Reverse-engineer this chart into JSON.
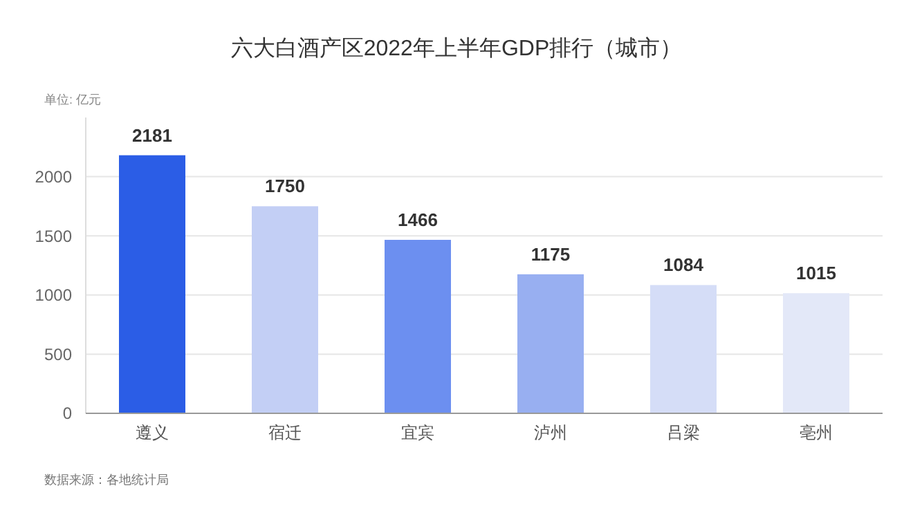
{
  "chart_data": {
    "type": "bar",
    "title": "六大白酒产区2022年上半年GDP排行（城市）",
    "subtitle": "单位: 亿元",
    "categories": [
      "遵义",
      "宿迁",
      "宜宾",
      "泸州",
      "吕梁",
      "亳州"
    ],
    "values": [
      2181,
      1750,
      1466,
      1175,
      1084,
      1015
    ],
    "colors": [
      "#2b5de6",
      "#c3cff5",
      "#6c8ff0",
      "#98aff1",
      "#d5ddf7",
      "#e3e8f8"
    ],
    "ylim": [
      0,
      2500
    ],
    "yticks": [
      0,
      500,
      1000,
      1500,
      2000
    ],
    "grid": "y",
    "data_labels": true,
    "annotations": [
      "数据来源：各地统计局"
    ]
  }
}
